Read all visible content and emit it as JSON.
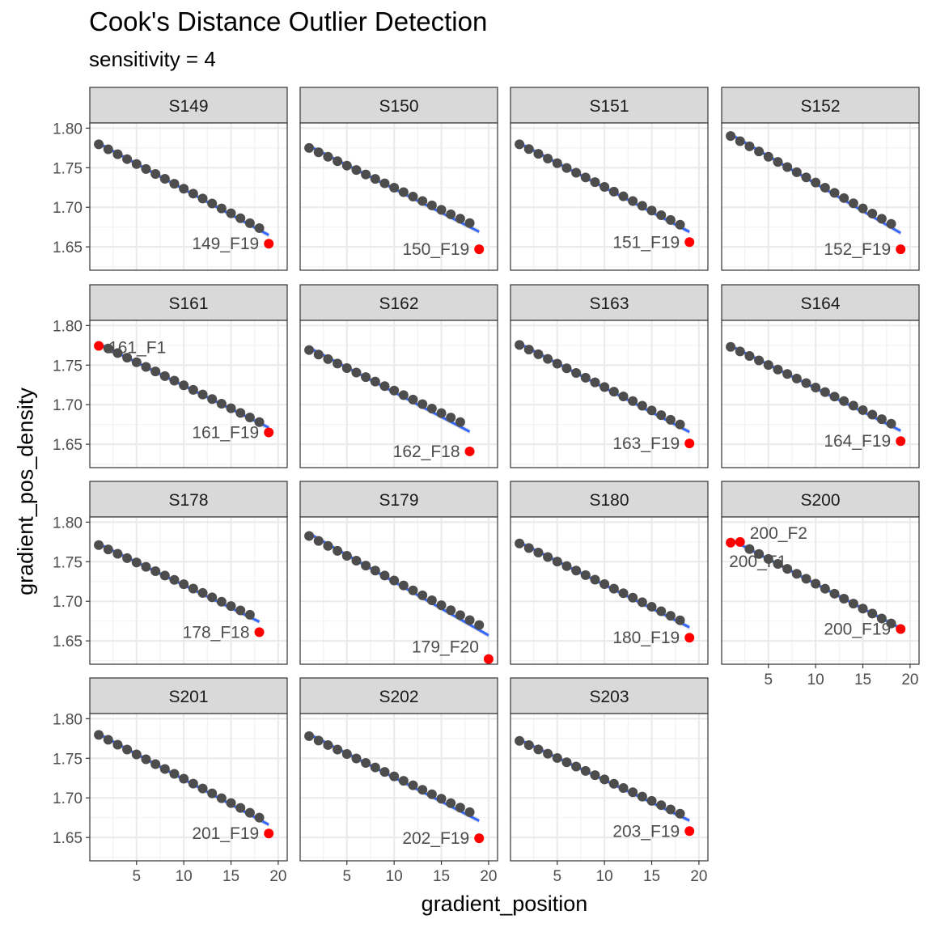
{
  "chart_data": {
    "type": "scatter",
    "title": "Cook's Distance Outlier Detection",
    "subtitle": "sensitivity = 4",
    "xlabel": "gradient_position",
    "ylabel": "gradient_pos_density",
    "xlim": [
      0.05,
      20.95
    ],
    "ylim": [
      1.6205,
      1.8065
    ],
    "x_ticks": [
      5,
      10,
      15,
      20
    ],
    "y_ticks": [
      "1.65",
      "1.70",
      "1.75",
      "1.80"
    ],
    "grid": true,
    "colors": {
      "normal": "#4d4d4d",
      "outlier": "#ff0000",
      "fit": "#3366ff"
    },
    "panels": [
      {
        "name": "S149",
        "regular": {
          "x_from": 1,
          "x_to": 18,
          "y_from": 1.7795,
          "y_to": 1.6737
        },
        "outliers": [
          {
            "x": 19,
            "y": 1.654,
            "label": "149_F19"
          }
        ]
      },
      {
        "name": "S150",
        "regular": {
          "x_from": 1,
          "x_to": 18,
          "y_from": 1.775,
          "y_to": 1.68
        },
        "outliers": [
          {
            "x": 19,
            "y": 1.647,
            "label": "150_F19"
          }
        ]
      },
      {
        "name": "S151",
        "regular": {
          "x_from": 1,
          "x_to": 18,
          "y_from": 1.7795,
          "y_to": 1.678
        },
        "outliers": [
          {
            "x": 19,
            "y": 1.656,
            "label": "151_F19"
          }
        ]
      },
      {
        "name": "S152",
        "regular": {
          "x_from": 1,
          "x_to": 18,
          "y_from": 1.79,
          "y_to": 1.679
        },
        "outliers": [
          {
            "x": 19,
            "y": 1.647,
            "label": "152_F19"
          }
        ]
      },
      {
        "name": "S161",
        "regular": {
          "x_from": 2,
          "x_to": 18,
          "y_from": 1.771,
          "y_to": 1.678
        },
        "outliers": [
          {
            "x": 1,
            "y": 1.7743,
            "label": "161_F1"
          },
          {
            "x": 19,
            "y": 1.665,
            "label": "161_F19"
          }
        ]
      },
      {
        "name": "S162",
        "regular": {
          "x_from": 1,
          "x_to": 17,
          "y_from": 1.769,
          "y_to": 1.678
        },
        "outliers": [
          {
            "x": 18,
            "y": 1.641,
            "label": "162_F18"
          }
        ]
      },
      {
        "name": "S163",
        "regular": {
          "x_from": 1,
          "x_to": 18,
          "y_from": 1.7755,
          "y_to": 1.675
        },
        "outliers": [
          {
            "x": 19,
            "y": 1.651,
            "label": "163_F19"
          }
        ]
      },
      {
        "name": "S164",
        "regular": {
          "x_from": 1,
          "x_to": 18,
          "y_from": 1.773,
          "y_to": 1.676
        },
        "outliers": [
          {
            "x": 19,
            "y": 1.654,
            "label": "164_F19"
          }
        ]
      },
      {
        "name": "S178",
        "regular": {
          "x_from": 1,
          "x_to": 17,
          "y_from": 1.771,
          "y_to": 1.683
        },
        "outliers": [
          {
            "x": 18,
            "y": 1.661,
            "label": "178_F18"
          }
        ]
      },
      {
        "name": "S179",
        "regular": {
          "x_from": 1,
          "x_to": 19,
          "y_from": 1.7825,
          "y_to": 1.67
        },
        "outliers": [
          {
            "x": 20,
            "y": 1.627,
            "label": "179_F20"
          }
        ]
      },
      {
        "name": "S180",
        "regular": {
          "x_from": 1,
          "x_to": 18,
          "y_from": 1.773,
          "y_to": 1.676
        },
        "outliers": [
          {
            "x": 19,
            "y": 1.654,
            "label": "180_F19"
          }
        ]
      },
      {
        "name": "S200",
        "regular": {
          "x_from": 3,
          "x_to": 18,
          "y_from": 1.766,
          "y_to": 1.672
        },
        "outliers": [
          {
            "x": 1,
            "y": 1.774,
            "label": "200_F1"
          },
          {
            "x": 2,
            "y": 1.775,
            "label": "200_F2"
          },
          {
            "x": 19,
            "y": 1.665,
            "label": "200_F19"
          }
        ]
      },
      {
        "name": "S201",
        "regular": {
          "x_from": 1,
          "x_to": 18,
          "y_from": 1.7795,
          "y_to": 1.675
        },
        "outliers": [
          {
            "x": 19,
            "y": 1.655,
            "label": "201_F19"
          }
        ]
      },
      {
        "name": "S202",
        "regular": {
          "x_from": 1,
          "x_to": 18,
          "y_from": 1.778,
          "y_to": 1.682
        },
        "outliers": [
          {
            "x": 19,
            "y": 1.649,
            "label": "202_F19"
          }
        ]
      },
      {
        "name": "S203",
        "regular": {
          "x_from": 1,
          "x_to": 18,
          "y_from": 1.772,
          "y_to": 1.68
        },
        "outliers": [
          {
            "x": 19,
            "y": 1.658,
            "label": "203_F19"
          }
        ]
      }
    ]
  }
}
